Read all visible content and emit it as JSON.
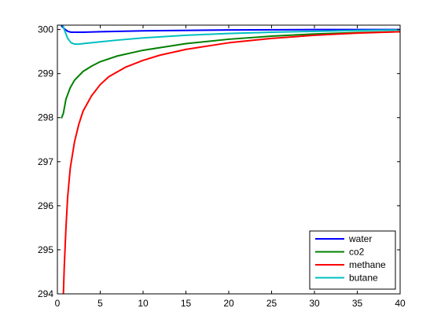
{
  "chart_data": {
    "type": "line",
    "title": "",
    "xlabel": "",
    "ylabel": "",
    "xlim": [
      0,
      40
    ],
    "ylim": [
      294,
      300.1
    ],
    "xticks": [
      0,
      5,
      10,
      15,
      20,
      25,
      30,
      35,
      40
    ],
    "yticks": [
      294,
      295,
      296,
      297,
      298,
      299,
      300
    ],
    "grid": false,
    "legend_position": "bottom-right",
    "series": [
      {
        "name": "water",
        "color": "#0000FF",
        "x": [
          0.5,
          0.8,
          1.2,
          1.6,
          2,
          3,
          5,
          10,
          20,
          30,
          40
        ],
        "y": [
          300.08,
          300.02,
          299.96,
          299.94,
          299.94,
          299.94,
          299.95,
          299.97,
          299.99,
          300.0,
          300.0
        ]
      },
      {
        "name": "co2",
        "color": "#008000",
        "x": [
          0.5,
          0.7,
          1,
          1.5,
          2,
          3,
          4,
          5,
          7,
          10,
          15,
          20,
          25,
          30,
          35,
          40
        ],
        "y": [
          298.0,
          298.1,
          298.42,
          298.68,
          298.85,
          299.05,
          299.17,
          299.27,
          299.4,
          299.53,
          299.68,
          299.78,
          299.85,
          299.9,
          299.93,
          299.95
        ]
      },
      {
        "name": "methane",
        "color": "#FF0000",
        "x": [
          0.7,
          0.8,
          1,
          1.2,
          1.5,
          2,
          2.5,
          3,
          4,
          5,
          6,
          8,
          10,
          12,
          15,
          20,
          25,
          30,
          35,
          40
        ],
        "y": [
          294.0,
          294.6,
          295.5,
          296.2,
          296.85,
          297.45,
          297.85,
          298.15,
          298.5,
          298.75,
          298.93,
          299.15,
          299.3,
          299.42,
          299.55,
          299.7,
          299.8,
          299.87,
          299.92,
          299.95
        ]
      },
      {
        "name": "butane",
        "color": "#00BFBF",
        "x": [
          0.5,
          0.8,
          1.2,
          1.6,
          2,
          2.5,
          3,
          4,
          5,
          7,
          10,
          15,
          20,
          25,
          30,
          35,
          40
        ],
        "y": [
          300.18,
          300.0,
          299.8,
          299.7,
          299.67,
          299.67,
          299.68,
          299.7,
          299.72,
          299.76,
          299.81,
          299.87,
          299.91,
          299.94,
          299.96,
          299.98,
          299.99
        ]
      }
    ]
  }
}
